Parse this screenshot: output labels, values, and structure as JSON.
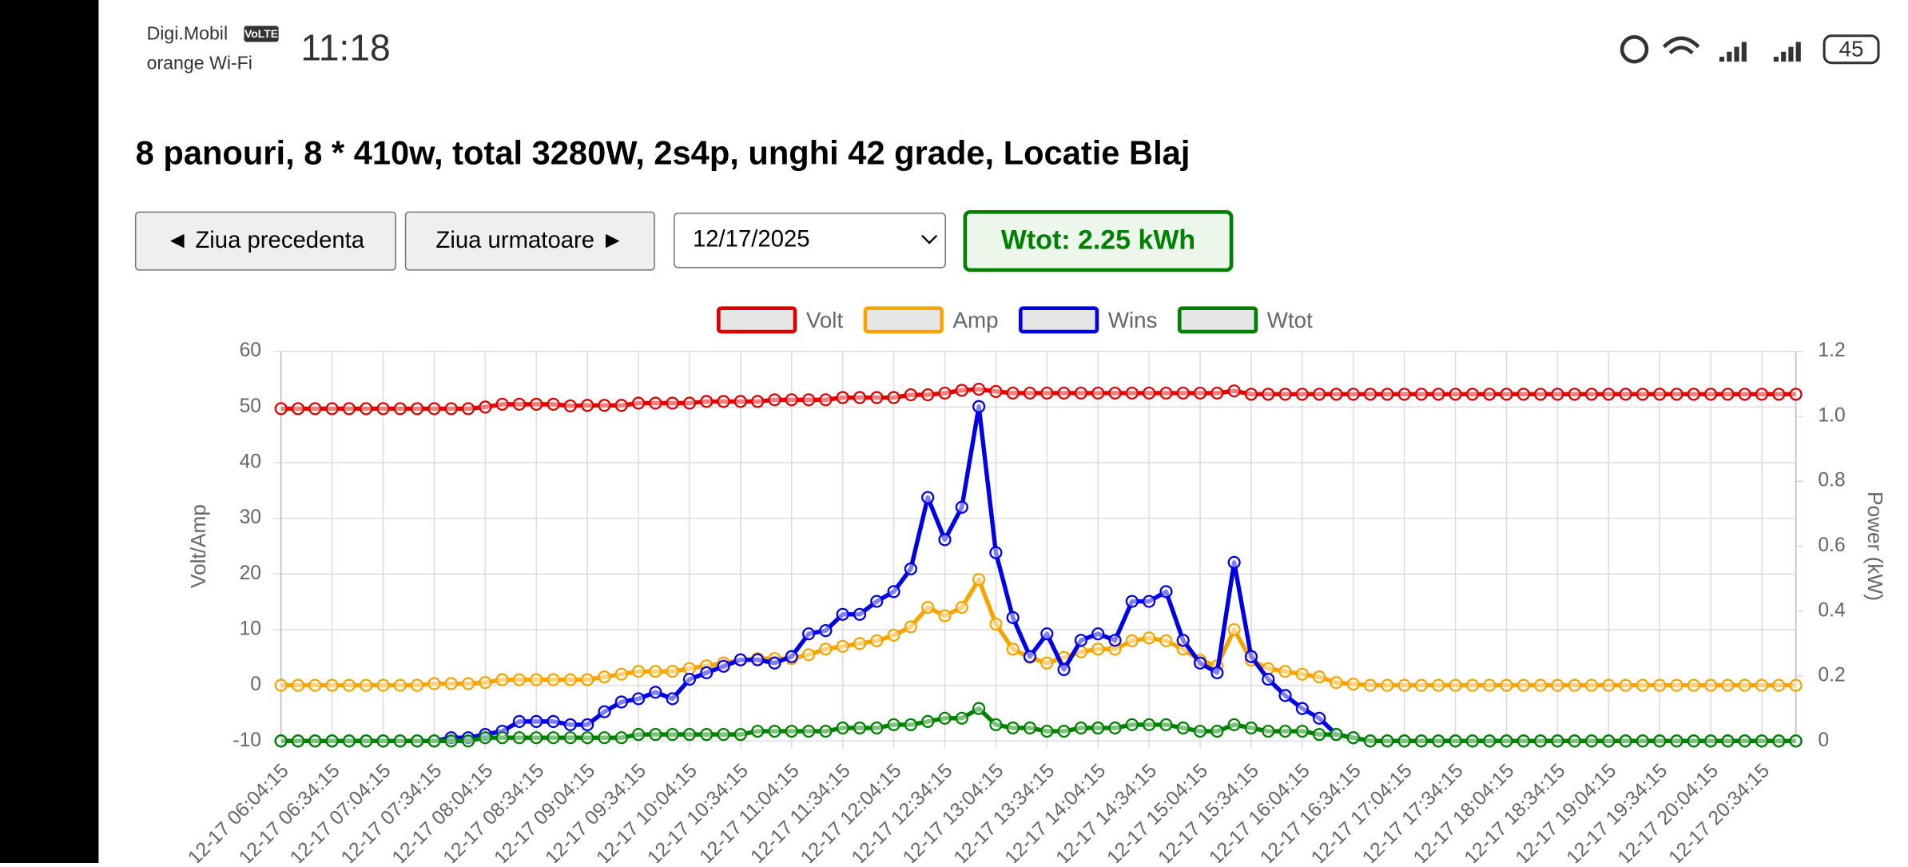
{
  "status_bar": {
    "carrier": "Digi.Mobil",
    "volte": "VoLTE",
    "wifi_label": "orange Wi-Fi",
    "time": "11:18",
    "battery": "45"
  },
  "header": {
    "title": "8 panouri, 8 * 410w, total 3280W, 2s4p, unghi 42 grade, Locatie Blaj"
  },
  "controls": {
    "prev_button": "◄ Ziua precedenta",
    "next_button": "Ziua urmatoare ►",
    "date": "12/17/2025",
    "total": "Wtot: 2.25 kWh"
  },
  "chart_data": {
    "type": "line",
    "y_label": "Volt/Amp",
    "y2_label": "Power (kW)",
    "grid": true,
    "legend": "top",
    "categories": [
      "12-17 06:04:15",
      null,
      null,
      "12-17 06:34:15",
      null,
      null,
      "12-17 07:04:15",
      null,
      null,
      "12-17 07:34:15",
      null,
      null,
      "12-17 08:04:15",
      null,
      null,
      "12-17 08:34:15",
      null,
      null,
      "12-17 09:04:15",
      null,
      null,
      "12-17 09:34:15",
      null,
      null,
      "12-17 10:04:15",
      null,
      null,
      "12-17 10:34:15",
      null,
      null,
      "12-17 11:04:15",
      null,
      null,
      "12-17 11:34:15",
      null,
      null,
      "12-17 12:04:15",
      null,
      null,
      "12-17 12:34:15",
      null,
      null,
      "12-17 13:04:15",
      null,
      null,
      "12-17 13:34:15",
      null,
      null,
      "12-17 14:04:15",
      null,
      null,
      "12-17 14:34:15",
      null,
      null,
      "12-17 15:04:15",
      null,
      null,
      "12-17 15:34:15",
      null,
      null,
      "12-17 16:04:15",
      null,
      null,
      "12-17 16:34:15",
      null,
      null,
      "12-17 17:04:15",
      null,
      null,
      "12-17 17:34:15",
      null,
      null,
      "12-17 18:04:15",
      null,
      null,
      "12-17 18:34:15",
      null,
      null,
      "12-17 19:04:15",
      null,
      null,
      "12-17 19:34:15",
      null,
      null,
      "12-17 20:04:15",
      null,
      null,
      "12-17 20:34:15",
      null,
      null
    ],
    "ylim": [
      -10,
      60
    ],
    "yticks": [
      -10,
      0,
      10,
      20,
      30,
      40,
      50,
      60
    ],
    "y2lim": [
      0,
      1.2
    ],
    "y2ticks": [
      0,
      0.2,
      0.4,
      0.6,
      0.8,
      {
        "value": 1,
        "label": "1.0"
      },
      1.2
    ],
    "series": [
      {
        "name": "Volt",
        "color": "#e00000",
        "values": [
          49.7,
          49.7,
          49.7,
          49.7,
          49.7,
          49.7,
          49.7,
          49.7,
          49.7,
          49.7,
          49.7,
          49.7,
          50,
          50.5,
          50.5,
          50.5,
          50.5,
          50.2,
          50.3,
          50.3,
          50.3,
          50.7,
          50.7,
          50.7,
          50.7,
          51,
          51,
          51,
          51,
          51.3,
          51.3,
          51.3,
          51.3,
          51.7,
          51.7,
          51.7,
          51.7,
          52.2,
          52.2,
          52.5,
          53,
          53.2,
          52.8,
          52.5,
          52.5,
          52.5,
          52.5,
          52.5,
          52.5,
          52.5,
          52.5,
          52.5,
          52.5,
          52.5,
          52.5,
          52.5,
          52.9,
          52.3,
          52.3,
          52.3,
          52.3,
          52.3,
          52.3,
          52.3,
          52.3,
          52.3,
          52.3,
          52.3,
          52.3,
          52.3,
          52.3,
          52.3,
          52.3,
          52.3,
          52.3,
          52.3,
          52.3,
          52.3,
          52.3,
          52.3,
          52.3,
          52.3,
          52.3,
          52.3,
          52.3,
          52.3,
          52.3,
          52.3,
          52.3,
          52.3
        ]
      },
      {
        "name": "Amp",
        "color": "#f5a500",
        "values": [
          0,
          0,
          0,
          0,
          0,
          0,
          0,
          0,
          0,
          0.3,
          0.3,
          0.3,
          0.5,
          1,
          1,
          1,
          1,
          1,
          1,
          1.5,
          2,
          2.5,
          2.5,
          2.5,
          3,
          3.5,
          4,
          4.5,
          4.8,
          4.8,
          4.8,
          5.5,
          6.5,
          7,
          7.5,
          8,
          9,
          10.5,
          14,
          12.5,
          14,
          19,
          11,
          6.5,
          5,
          4,
          5,
          6,
          6.5,
          6.5,
          8,
          8.5,
          8,
          6.5,
          4.5,
          3.5,
          10,
          4.5,
          3,
          2.5,
          2,
          1.5,
          0.5,
          0.2,
          0,
          0,
          0,
          0,
          0,
          0,
          0,
          0,
          0,
          0,
          0,
          0,
          0,
          0,
          0,
          0,
          0,
          0,
          0,
          0,
          0,
          0,
          0,
          0,
          0,
          0
        ]
      },
      {
        "name": "Wins",
        "color": "#0000e6",
        "axis": "y2",
        "values": [
          0,
          0,
          0,
          0,
          0,
          0,
          0,
          0,
          0,
          0,
          0.01,
          0.01,
          0.02,
          0.03,
          0.06,
          0.06,
          0.06,
          0.05,
          0.05,
          0.09,
          0.12,
          0.13,
          0.15,
          0.13,
          0.19,
          0.21,
          0.23,
          0.25,
          0.25,
          0.24,
          0.26,
          0.33,
          0.34,
          0.39,
          0.39,
          0.43,
          0.46,
          0.53,
          0.75,
          0.62,
          0.72,
          1.03,
          0.58,
          0.38,
          0.26,
          0.33,
          0.22,
          0.31,
          0.33,
          0.31,
          0.43,
          0.43,
          0.46,
          0.31,
          0.24,
          0.21,
          0.55,
          0.26,
          0.19,
          0.14,
          0.1,
          0.07,
          0.02,
          0.01,
          0,
          0,
          0,
          0,
          0,
          0,
          0,
          0,
          0,
          0,
          0,
          0,
          0,
          0,
          0,
          0,
          0,
          0,
          0,
          0,
          0,
          0,
          0,
          0,
          0,
          0
        ]
      },
      {
        "name": "Wtot",
        "color": "#008000",
        "axis": "y2",
        "values": [
          0,
          0,
          0,
          0,
          0,
          0,
          0,
          0,
          0,
          0,
          0,
          0,
          0.01,
          0.01,
          0.01,
          0.01,
          0.01,
          0.01,
          0.01,
          0.01,
          0.01,
          0.02,
          0.02,
          0.02,
          0.02,
          0.02,
          0.02,
          0.02,
          0.03,
          0.03,
          0.03,
          0.03,
          0.03,
          0.04,
          0.04,
          0.04,
          0.05,
          0.05,
          0.06,
          0.07,
          0.07,
          0.1,
          0.05,
          0.04,
          0.04,
          0.03,
          0.03,
          0.04,
          0.04,
          0.04,
          0.05,
          0.05,
          0.05,
          0.04,
          0.03,
          0.03,
          0.05,
          0.04,
          0.03,
          0.03,
          0.03,
          0.02,
          0.02,
          0.01,
          0,
          0,
          0,
          0,
          0,
          0,
          0,
          0,
          0,
          0,
          0,
          0,
          0,
          0,
          0,
          0,
          0,
          0,
          0,
          0,
          0,
          0,
          0,
          0,
          0,
          0
        ]
      }
    ]
  }
}
